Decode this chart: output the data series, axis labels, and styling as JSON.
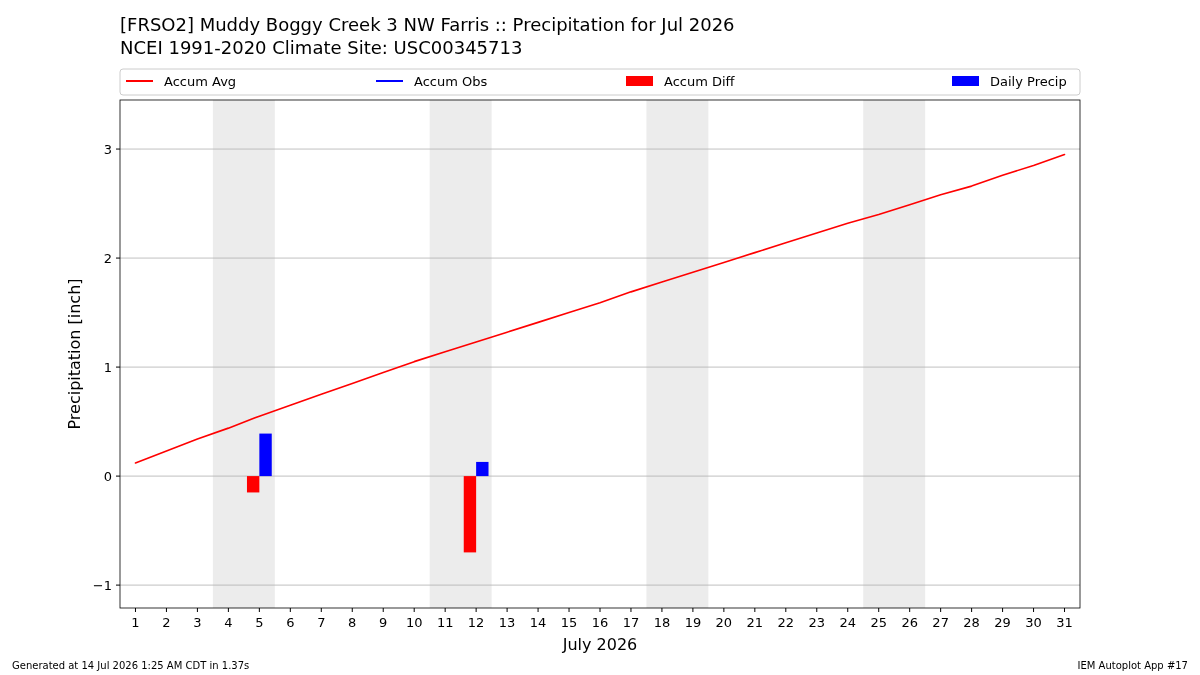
{
  "chart_data": {
    "type": "line",
    "title": "[FRSO2] Muddy Boggy Creek 3 NW Farris :: Precipitation for Jul 2026",
    "subtitle": "NCEI 1991-2020 Climate Site: USC00345713",
    "xlabel": "July 2026",
    "ylabel": "Precipitation [inch]",
    "xlim": [
      0.5,
      31.5
    ],
    "xticks": [
      1,
      2,
      3,
      4,
      5,
      6,
      7,
      8,
      9,
      10,
      11,
      12,
      13,
      14,
      15,
      16,
      17,
      18,
      19,
      20,
      21,
      22,
      23,
      24,
      25,
      26,
      27,
      28,
      29,
      30,
      31
    ],
    "ylim": [
      -1.21,
      3.45
    ],
    "yticks": [
      {
        "value": -1,
        "label": "−1"
      },
      0,
      1,
      2,
      3
    ],
    "grid": "y",
    "legend": "top",
    "series": [
      {
        "name": "Accum Avg",
        "color": "#ff0000",
        "x": [
          1,
          2,
          3,
          4,
          5,
          6,
          7,
          8,
          9,
          10,
          11,
          12,
          13,
          14,
          15,
          16,
          17,
          18,
          19,
          20,
          21,
          22,
          23,
          24,
          25,
          26,
          27,
          28,
          29,
          30,
          31
        ],
        "values": [
          0.12,
          0.23,
          0.34,
          0.44,
          0.55,
          0.65,
          0.75,
          0.85,
          0.95,
          1.05,
          1.14,
          1.23,
          1.32,
          1.41,
          1.5,
          1.59,
          1.69,
          1.78,
          1.87,
          1.96,
          2.05,
          2.14,
          2.23,
          2.32,
          2.4,
          2.49,
          2.58,
          2.66,
          2.76,
          2.85,
          2.95
        ]
      },
      {
        "name": "Accum Obs",
        "color": "#0000ff"
      },
      {
        "name": "Accum Diff",
        "type": "bar",
        "color": "#ff0000",
        "x": [
          5,
          12
        ],
        "values": [
          -0.15,
          -0.7
        ]
      },
      {
        "name": "Daily Precip",
        "type": "bar",
        "color": "#0000ff",
        "x": [
          5,
          12
        ],
        "values": [
          0.39,
          0.13
        ]
      }
    ],
    "bands": [
      {
        "axis": "x",
        "from": 3.5,
        "to": 5.5,
        "color": "#ececec"
      },
      {
        "axis": "x",
        "from": 10.5,
        "to": 12.5,
        "color": "#ececec"
      },
      {
        "axis": "x",
        "from": 17.5,
        "to": 19.5,
        "color": "#ececec"
      },
      {
        "axis": "x",
        "from": 24.5,
        "to": 26.5,
        "color": "#ececec"
      }
    ],
    "annotations": [
      "Generated at 14 Jul 2026 1:25 AM CDT in 1.37s",
      "IEM Autoplot App #17"
    ]
  }
}
